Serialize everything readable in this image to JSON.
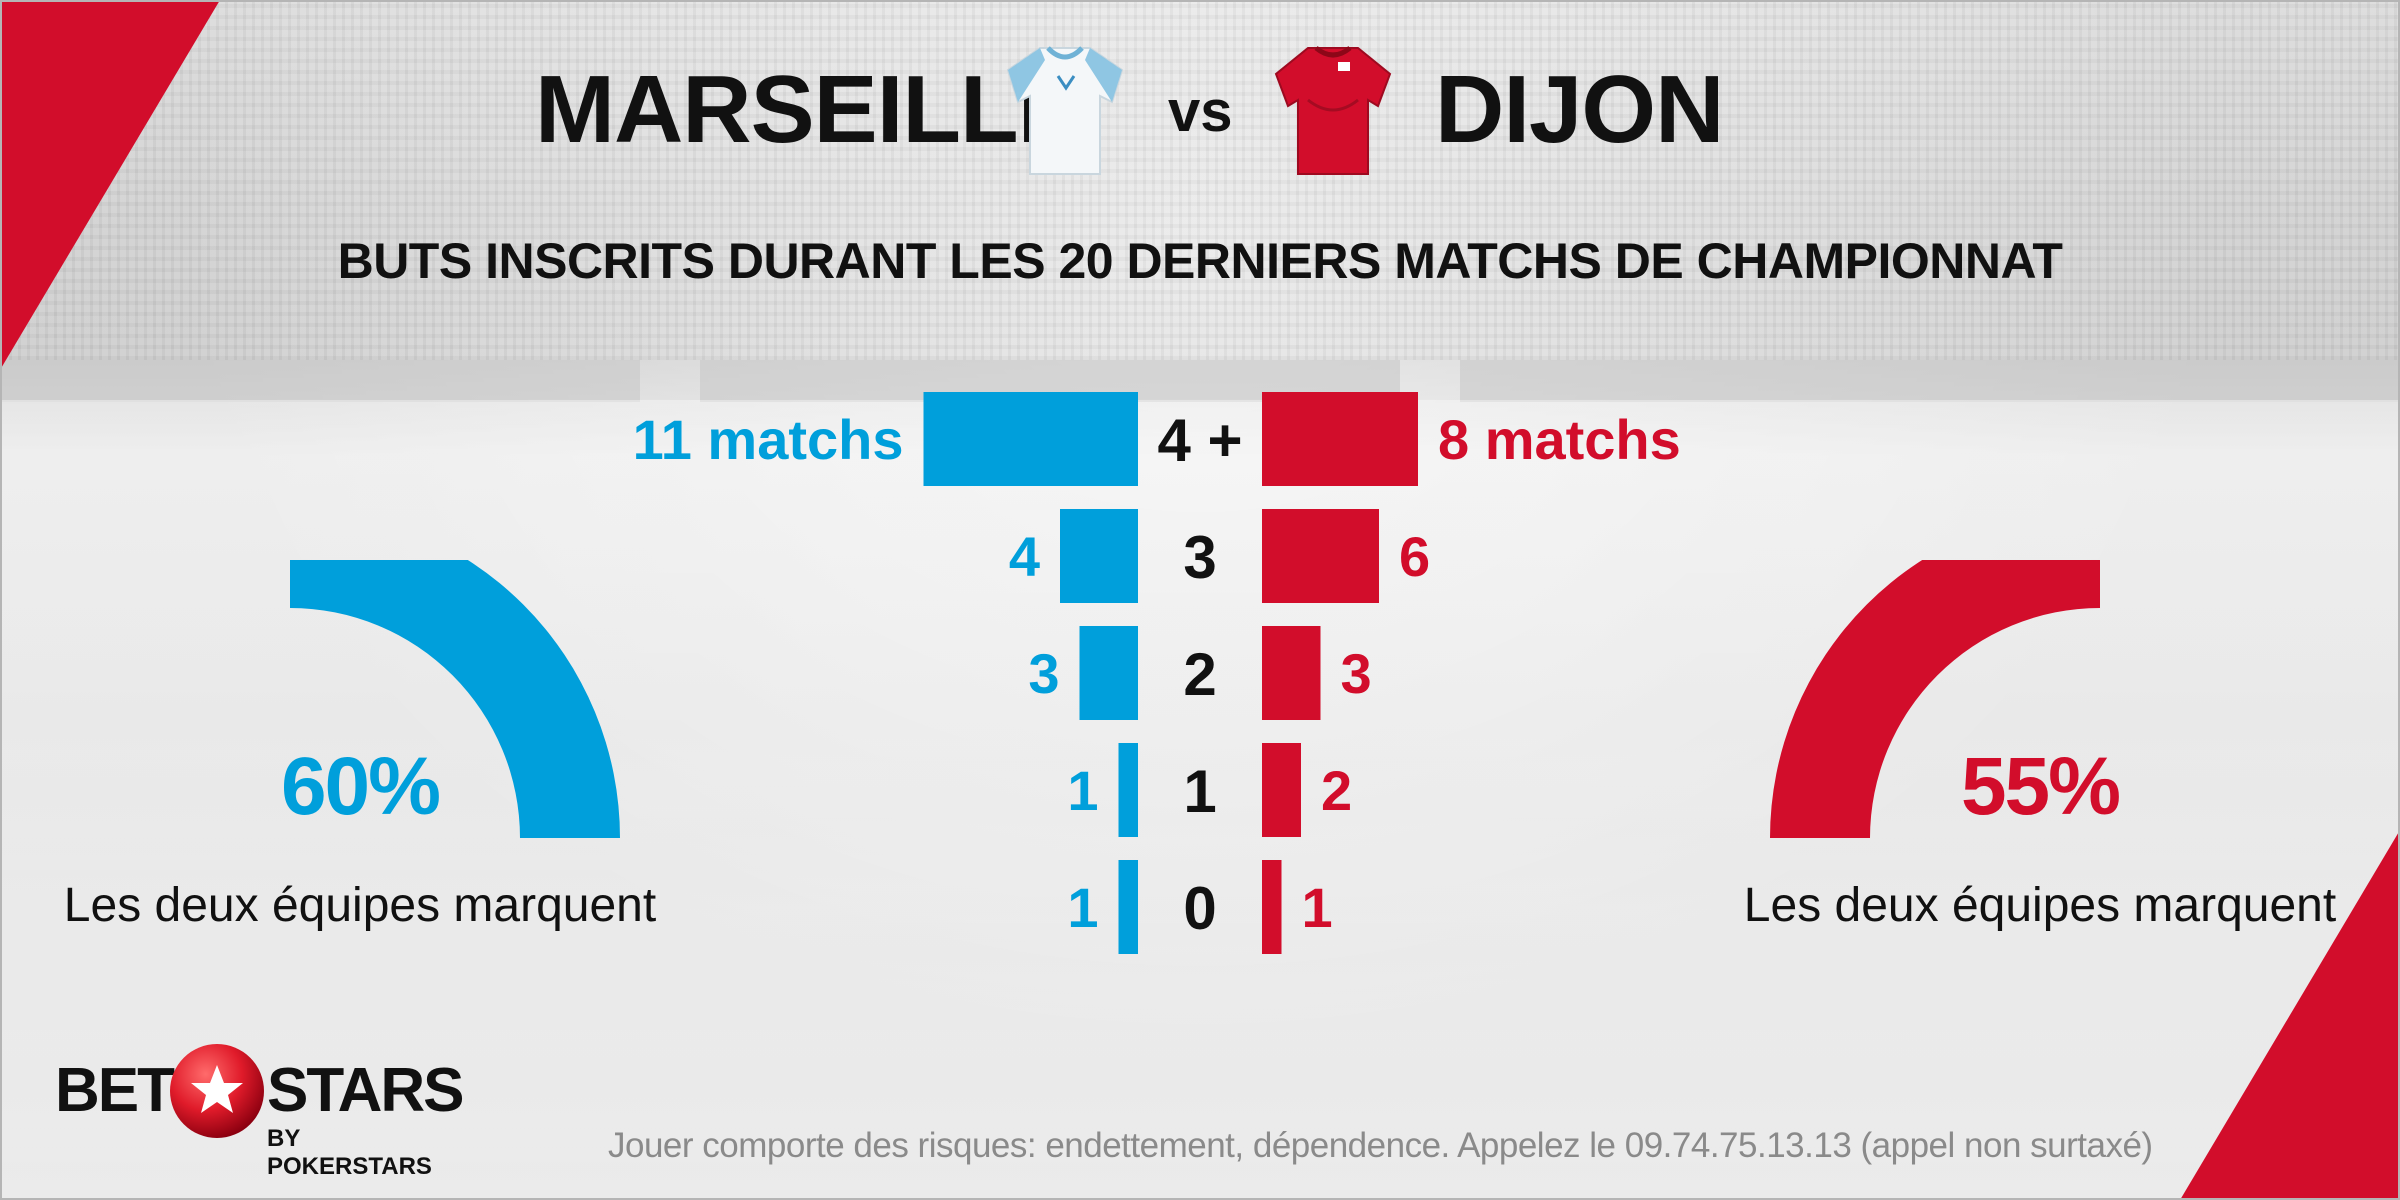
{
  "match": {
    "home_team": "MARSEILLE",
    "away_team": "DIJON",
    "vs_label": "vs"
  },
  "icons": {
    "home_jersey": "marseille-jersey-icon",
    "away_jersey": "dijon-jersey-icon"
  },
  "colors": {
    "home": "#009fdb",
    "away": "#d20d2b",
    "text": "#111111"
  },
  "chart_data": {
    "type": "bar",
    "title": "BUTS INSCRITS DURANT LES 20 DERNIERS MATCHS DE CHAMPIONNAT",
    "categories": [
      "4 +",
      "3",
      "2",
      "1",
      "0"
    ],
    "series": [
      {
        "name": "MARSEILLE",
        "values": [
          11,
          4,
          3,
          1,
          1
        ],
        "labels": [
          "11 matchs",
          "4",
          "3",
          "1",
          "1"
        ]
      },
      {
        "name": "DIJON",
        "values": [
          8,
          6,
          3,
          2,
          1
        ],
        "labels": [
          "8 matchs",
          "6",
          "3",
          "2",
          "1"
        ]
      }
    ],
    "orientation": "horizontal-diverging"
  },
  "both_teams_score": {
    "home": {
      "value": 60,
      "label": "60%",
      "caption": "Les deux équipes marquent"
    },
    "away": {
      "value": 55,
      "label": "55%",
      "caption": "Les deux équipes marquent"
    }
  },
  "branding": {
    "logo_left": "BET",
    "logo_right": "STARS",
    "logo_sub": "BY POKERSTARS"
  },
  "disclaimer": "Jouer comporte des risques: endettement, dépendence. Appelez le 09.74.75.13.13 (appel non surtaxé)"
}
